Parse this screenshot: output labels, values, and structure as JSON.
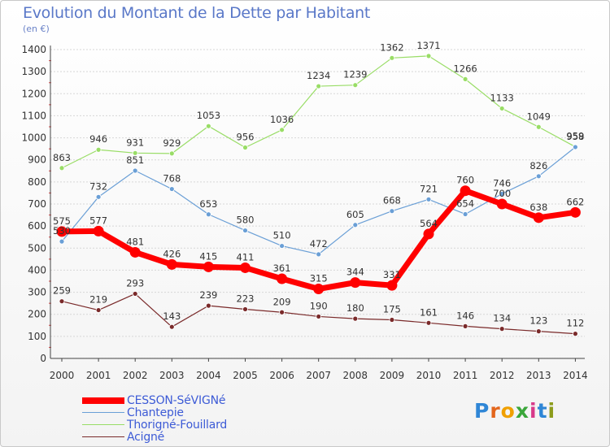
{
  "title": "Evolution du Montant de la Dette par Habitant",
  "unit": "(en €)",
  "logo": {
    "letters": [
      "P",
      "r",
      "o",
      "x",
      "i",
      "t",
      "i"
    ],
    "colors": [
      "#2f86d6",
      "#e3661c",
      "#f0a000",
      "#3aa63a",
      "#d83a8a",
      "#2f86d6",
      "#8c9c1c"
    ]
  },
  "chart_data": {
    "type": "line",
    "title": "Evolution du Montant de la Dette par Habitant",
    "ylabel": "(en €)",
    "xlabel": "",
    "x": [
      "2000",
      "2001",
      "2002",
      "2003",
      "2004",
      "2005",
      "2006",
      "2007",
      "2008",
      "2009",
      "2010",
      "2011",
      "2012",
      "2013",
      "2014"
    ],
    "ylim": [
      0,
      1400
    ],
    "yticks": [
      0,
      100,
      200,
      300,
      400,
      500,
      600,
      700,
      800,
      900,
      1000,
      1100,
      1200,
      1300,
      1400
    ],
    "grid": "horizontal",
    "legend_position": "bottom-left",
    "series": [
      {
        "name": "CESSON-SéVIGNé",
        "color": "#ff0000",
        "values": [
          575,
          577,
          481,
          426,
          415,
          411,
          361,
          315,
          344,
          331,
          564,
          760,
          700,
          638,
          662
        ],
        "labels": [
          "575",
          "577",
          "481",
          "426",
          "415",
          "411",
          "361",
          "315",
          "344",
          "331",
          "564",
          "760",
          "700",
          "638",
          "662"
        ]
      },
      {
        "name": "Chantepie",
        "color": "#6a9fd6",
        "values": [
          530,
          732,
          851,
          768,
          653,
          580,
          510,
          472,
          605,
          668,
          721,
          654,
          746,
          826,
          958
        ],
        "labels": [
          "530",
          "732",
          "851",
          "768",
          "653",
          "580",
          "510",
          "472",
          "605",
          "668",
          "721",
          "654",
          "746",
          "826",
          "958"
        ]
      },
      {
        "name": "Thorigné-Fouillard",
        "color": "#99dd66",
        "values": [
          863,
          946,
          931,
          929,
          1053,
          956,
          1036,
          1234,
          1239,
          1362,
          1371,
          1266,
          1133,
          1049,
          959
        ],
        "labels": [
          "863",
          "946",
          "931",
          "929",
          "1053",
          "956",
          "1036",
          "1234",
          "1239",
          "1362",
          "1371",
          "1266",
          "1133",
          "1049",
          "959"
        ]
      },
      {
        "name": "Acigné",
        "color": "#7a2a2a",
        "values": [
          259,
          219,
          293,
          143,
          239,
          223,
          209,
          190,
          180,
          175,
          161,
          146,
          134,
          123,
          112
        ],
        "labels": [
          "259",
          "219",
          "293",
          "143",
          "239",
          "223",
          "209",
          "190",
          "180",
          "175",
          "161",
          "146",
          "134",
          "123",
          "112"
        ]
      }
    ]
  }
}
